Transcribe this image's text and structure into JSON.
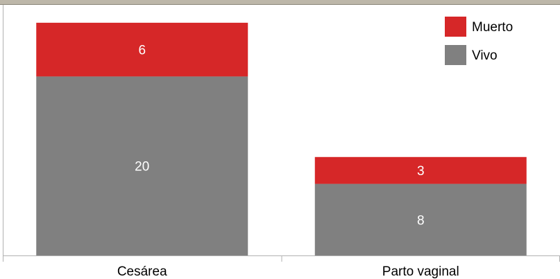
{
  "chart_data": {
    "type": "bar",
    "stacked": true,
    "categories": [
      "Cesárea",
      "Parto vaginal"
    ],
    "series": [
      {
        "name": "Vivo",
        "values": [
          20,
          8
        ],
        "color": "#808080"
      },
      {
        "name": "Muerto",
        "values": [
          6,
          3
        ],
        "color": "#d62728"
      }
    ],
    "ylim": [
      0,
      28
    ],
    "grid": false,
    "legend": {
      "position": "top-right",
      "order": [
        "Muerto",
        "Vivo"
      ]
    },
    "colors": {
      "frame_top": "#bdb7a9",
      "axis": "#b0b0b0",
      "background": "#ffffff"
    }
  }
}
